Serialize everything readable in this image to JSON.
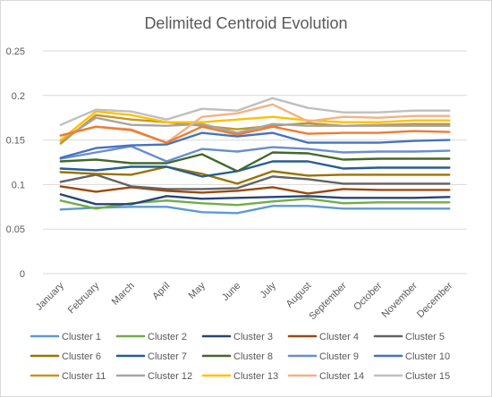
{
  "chart_data": {
    "type": "line",
    "title": "Delimited Centroid Evolution",
    "xlabel": "",
    "ylabel": "",
    "ylim": [
      0,
      0.25
    ],
    "yticks": [
      "0",
      "0.05",
      "0.1",
      "0.15",
      "0.2",
      "0.25"
    ],
    "grid": true,
    "legend_position": "bottom",
    "x": [
      "January",
      "February",
      "March",
      "April",
      "May",
      "June",
      "July",
      "August",
      "September",
      "October",
      "November",
      "December"
    ],
    "series": [
      {
        "name": "Cluster 1",
        "color": "#5B9BD5",
        "values": [
          0.072,
          0.074,
          0.075,
          0.075,
          0.069,
          0.068,
          0.076,
          0.076,
          0.073,
          0.073,
          0.073,
          0.073
        ]
      },
      {
        "name": "Cluster 2",
        "color": "#70AD47",
        "values": [
          0.082,
          0.073,
          0.079,
          0.082,
          0.079,
          0.077,
          0.081,
          0.084,
          0.079,
          0.08,
          0.08,
          0.08
        ]
      },
      {
        "name": "Cluster 3",
        "color": "#264478",
        "values": [
          0.089,
          0.078,
          0.078,
          0.087,
          0.084,
          0.085,
          0.086,
          0.087,
          0.085,
          0.085,
          0.085,
          0.086
        ]
      },
      {
        "name": "Cluster 4",
        "color": "#9E480E",
        "values": [
          0.098,
          0.092,
          0.097,
          0.093,
          0.091,
          0.093,
          0.097,
          0.09,
          0.095,
          0.094,
          0.094,
          0.094
        ]
      },
      {
        "name": "Cluster 5",
        "color": "#636363",
        "values": [
          0.103,
          0.111,
          0.098,
          0.095,
          0.095,
          0.096,
          0.109,
          0.106,
          0.101,
          0.101,
          0.101,
          0.101
        ]
      },
      {
        "name": "Cluster 6",
        "color": "#997300",
        "values": [
          0.114,
          0.112,
          0.111,
          0.12,
          0.112,
          0.101,
          0.115,
          0.11,
          0.111,
          0.111,
          0.111,
          0.111
        ]
      },
      {
        "name": "Cluster 7",
        "color": "#255E91",
        "values": [
          0.118,
          0.116,
          0.12,
          0.12,
          0.109,
          0.115,
          0.126,
          0.126,
          0.118,
          0.119,
          0.119,
          0.119
        ]
      },
      {
        "name": "Cluster 8",
        "color": "#43682B",
        "values": [
          0.126,
          0.128,
          0.124,
          0.124,
          0.134,
          0.115,
          0.136,
          0.135,
          0.128,
          0.129,
          0.129,
          0.129
        ]
      },
      {
        "name": "Cluster 9",
        "color": "#698ED0",
        "values": [
          0.129,
          0.136,
          0.143,
          0.126,
          0.14,
          0.137,
          0.142,
          0.14,
          0.136,
          0.137,
          0.137,
          0.138
        ]
      },
      {
        "name": "Cluster 10",
        "color": "#4472C4",
        "values": [
          0.13,
          0.141,
          0.144,
          0.145,
          0.158,
          0.154,
          0.158,
          0.147,
          0.147,
          0.147,
          0.149,
          0.15
        ]
      },
      {
        "name": "Cluster 11",
        "color": "#C5961F",
        "values": [
          0.146,
          0.178,
          0.173,
          0.17,
          0.166,
          0.162,
          0.166,
          0.169,
          0.166,
          0.167,
          0.168,
          0.168
        ]
      },
      {
        "name": "Cluster 12",
        "color": "#A5A5A5",
        "values": [
          0.149,
          0.175,
          0.167,
          0.166,
          0.168,
          0.158,
          0.168,
          0.166,
          0.166,
          0.166,
          0.166,
          0.166
        ]
      },
      {
        "name": "Cluster 13",
        "color": "#FFC000",
        "values": [
          0.15,
          0.182,
          0.178,
          0.17,
          0.17,
          0.173,
          0.176,
          0.172,
          0.17,
          0.17,
          0.172,
          0.172
        ]
      },
      {
        "name": "Cluster 14",
        "color": "#F4B183",
        "values": [
          0.155,
          0.165,
          0.162,
          0.147,
          0.176,
          0.18,
          0.19,
          0.171,
          0.176,
          0.175,
          0.177,
          0.177
        ]
      },
      {
        "name": "Cluster 15",
        "color": "#BFBFBF",
        "values": [
          0.167,
          0.184,
          0.182,
          0.173,
          0.185,
          0.183,
          0.197,
          0.186,
          0.181,
          0.181,
          0.183,
          0.183
        ]
      },
      {
        "name": "",
        "color": "#ED7D31",
        "values": [
          0.155,
          0.165,
          0.161,
          0.147,
          0.165,
          0.156,
          0.165,
          0.157,
          0.158,
          0.158,
          0.16,
          0.159
        ]
      }
    ]
  }
}
